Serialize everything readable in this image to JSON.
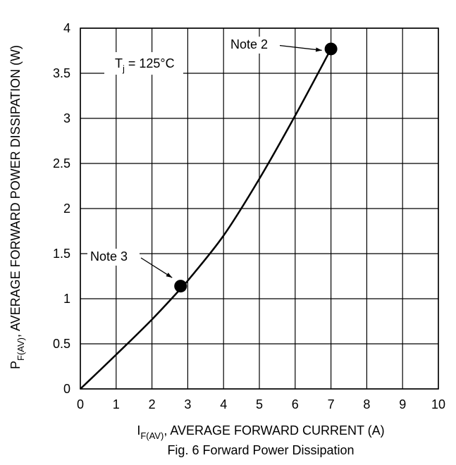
{
  "chart_data": {
    "type": "line",
    "title": "",
    "caption": "Fig. 6  Forward Power Dissipation",
    "x_label": {
      "prefix": "I",
      "subscript": "F(AV)",
      "suffix": ", AVERAGE FORWARD CURRENT (A)"
    },
    "y_label": {
      "prefix": "P",
      "subscript": "F(AV)",
      "suffix": ", AVERAGE FORWARD POWER DISSIPATION (W)"
    },
    "xlim": [
      0,
      10
    ],
    "ylim": [
      0,
      4
    ],
    "x_ticks": [
      "0",
      "1",
      "2",
      "3",
      "4",
      "5",
      "6",
      "7",
      "8",
      "9",
      "10"
    ],
    "y_ticks": [
      "0",
      "0.5",
      "1",
      "1.5",
      "2",
      "2.5",
      "3",
      "3.5",
      "4"
    ],
    "grid": true,
    "condition": {
      "prefix": "T",
      "subscript": "j",
      "suffix": " = 125°C"
    },
    "series": [
      {
        "points": [
          {
            "x": 0,
            "y": 0
          },
          {
            "x": 1,
            "y": 0.38
          },
          {
            "x": 2,
            "y": 0.77
          },
          {
            "x": 2.8,
            "y": 1.11
          },
          {
            "x": 3,
            "y": 1.2
          },
          {
            "x": 4,
            "y": 1.7
          },
          {
            "x": 5,
            "y": 2.33
          },
          {
            "x": 6,
            "y": 3.03
          },
          {
            "x": 7,
            "y": 3.77
          }
        ]
      }
    ],
    "annotations": [
      {
        "text": "Note 2",
        "x": 7,
        "y": 3.77
      },
      {
        "text": "Note 3",
        "x": 2.8,
        "y": 1.14
      }
    ],
    "colors": {
      "line": "#000000",
      "grid": "#000000",
      "background": "#ffffff"
    }
  }
}
